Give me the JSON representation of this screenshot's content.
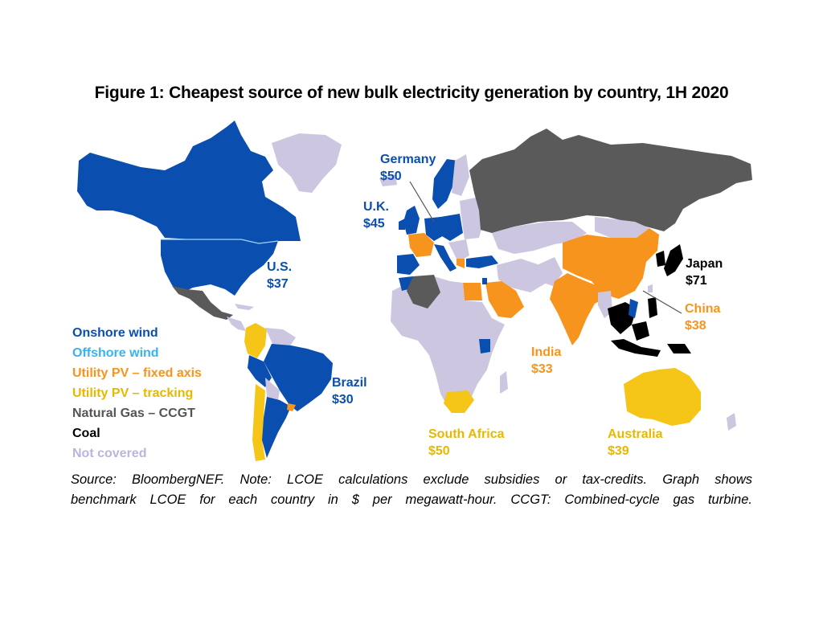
{
  "title": "Figure 1: Cheapest source of new bulk electricity generation by country, 1H 2020",
  "colors": {
    "onshore_wind": "#0a4fb0",
    "offshore_wind": "#39b3f0",
    "pv_fixed": "#f7941d",
    "pv_tracking": "#f5c518",
    "gas": "#5a5a5a",
    "coal": "#000000",
    "not_covered": "#cdc6e0"
  },
  "legend": [
    {
      "label": "Onshore wind",
      "color": "#0a4fb0"
    },
    {
      "label": "Offshore wind",
      "color": "#39b3f0"
    },
    {
      "label": "Utility PV – fixed axis",
      "color": "#f7941d"
    },
    {
      "label": "Utility PV – tracking",
      "color": "#e8b800"
    },
    {
      "label": "Natural Gas – CCGT",
      "color": "#555555"
    },
    {
      "label": "Coal",
      "color": "#000000"
    },
    {
      "label": "Not covered",
      "color": "#bdb3dc"
    }
  ],
  "countries": [
    {
      "name": "Germany",
      "value": "$50",
      "color": "#0a4fb0"
    },
    {
      "name": "U.K.",
      "value": "$45",
      "color": "#0a4fb0"
    },
    {
      "name": "U.S.",
      "value": "$37",
      "color": "#0a4fb0"
    },
    {
      "name": "Japan",
      "value": "$71",
      "color": "#000000"
    },
    {
      "name": "China",
      "value": "$38",
      "color": "#f7941d"
    },
    {
      "name": "India",
      "value": "$33",
      "color": "#f7941d"
    },
    {
      "name": "Brazil",
      "value": "$30",
      "color": "#0a4fb0"
    },
    {
      "name": "South Africa",
      "value": "$50",
      "color": "#e8b800"
    },
    {
      "name": "Australia",
      "value": "$39",
      "color": "#e8b800"
    }
  ],
  "source": {
    "line1": "Source: BloombergNEF. Note: LCOE calculations exclude subsidies or tax-credits. Graph shows",
    "line2": "benchmark LCOE for each country in $ per megawatt-hour. CCGT: Combined-cycle gas turbine."
  }
}
